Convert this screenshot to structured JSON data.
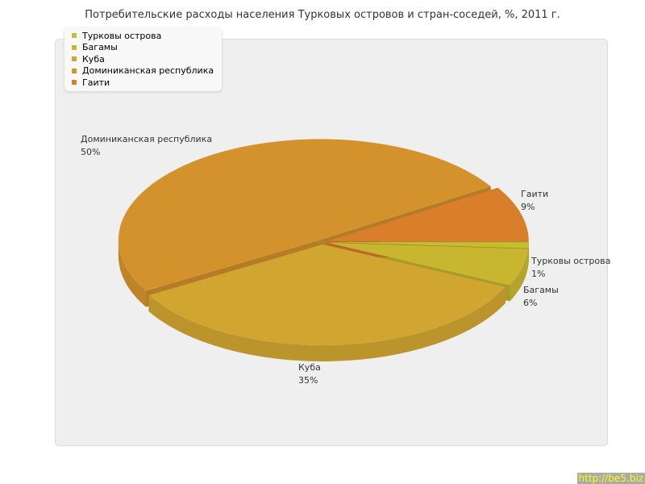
{
  "chart_data": {
    "type": "pie",
    "title": "Потребительские расходы населения Турковых островов и стран-соседей, %, 2011 г.",
    "categories": [
      "Турковы острова",
      "Багамы",
      "Куба",
      "Доминиканская республика",
      "Гаити"
    ],
    "values": [
      1,
      6,
      35,
      50,
      9
    ],
    "value_labels": [
      "1%",
      "6%",
      "35%",
      "50%",
      "9%"
    ],
    "colors": [
      "#bfc22e",
      "#c8b630",
      "#d0a530",
      "#d4922c",
      "#d97f2c"
    ],
    "legend_position": "top-left",
    "style": "3d-exploded"
  },
  "watermark": "http://be5.biz"
}
